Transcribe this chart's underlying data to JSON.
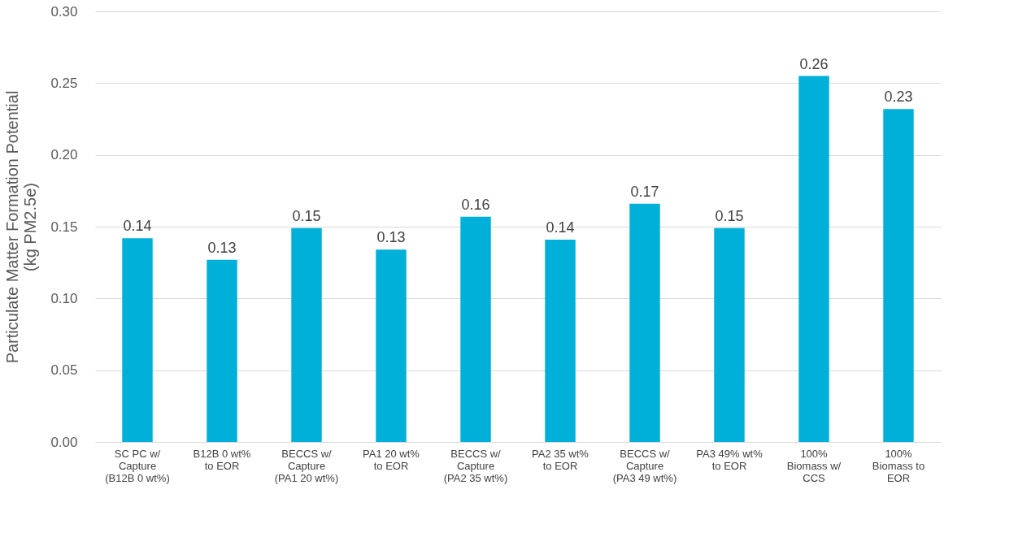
{
  "chart_data": {
    "type": "bar",
    "ylabel": "Particulate Matter Formation Potential\n(kg PM2.5e)",
    "categories": [
      "SC PC w/\nCapture\n(B12B 0 wt%)",
      "B12B 0 wt%\nto EOR",
      "BECCS w/\nCapture\n(PA1 20 wt%)",
      "PA1 20 wt%\nto EOR",
      "BECCS w/\nCapture\n(PA2 35 wt%)",
      "PA2 35 wt%\nto EOR",
      "BECCS w/\nCapture\n(PA3 49 wt%)",
      "PA3 49% wt%\nto EOR",
      "100%\nBiomass w/\nCCS",
      "100%\nBiomass to\nEOR"
    ],
    "values": [
      0.142,
      0.127,
      0.149,
      0.134,
      0.157,
      0.141,
      0.166,
      0.149,
      0.255,
      0.232
    ],
    "value_labels": [
      "0.14",
      "0.13",
      "0.15",
      "0.13",
      "0.16",
      "0.14",
      "0.17",
      "0.15",
      "0.26",
      "0.23"
    ],
    "color": "#00b0d8",
    "ylim": [
      0,
      0.3
    ],
    "yticks": [
      {
        "value": 0,
        "label": "0.00"
      },
      {
        "value": 0.05,
        "label": "0.05"
      },
      {
        "value": 0.1,
        "label": "0.10"
      },
      {
        "value": 0.15,
        "label": "0.15"
      },
      {
        "value": 0.2,
        "label": "0.20"
      },
      {
        "value": 0.25,
        "label": "0.25"
      },
      {
        "value": 0.3,
        "label": "0.30"
      }
    ],
    "grid": "y"
  }
}
